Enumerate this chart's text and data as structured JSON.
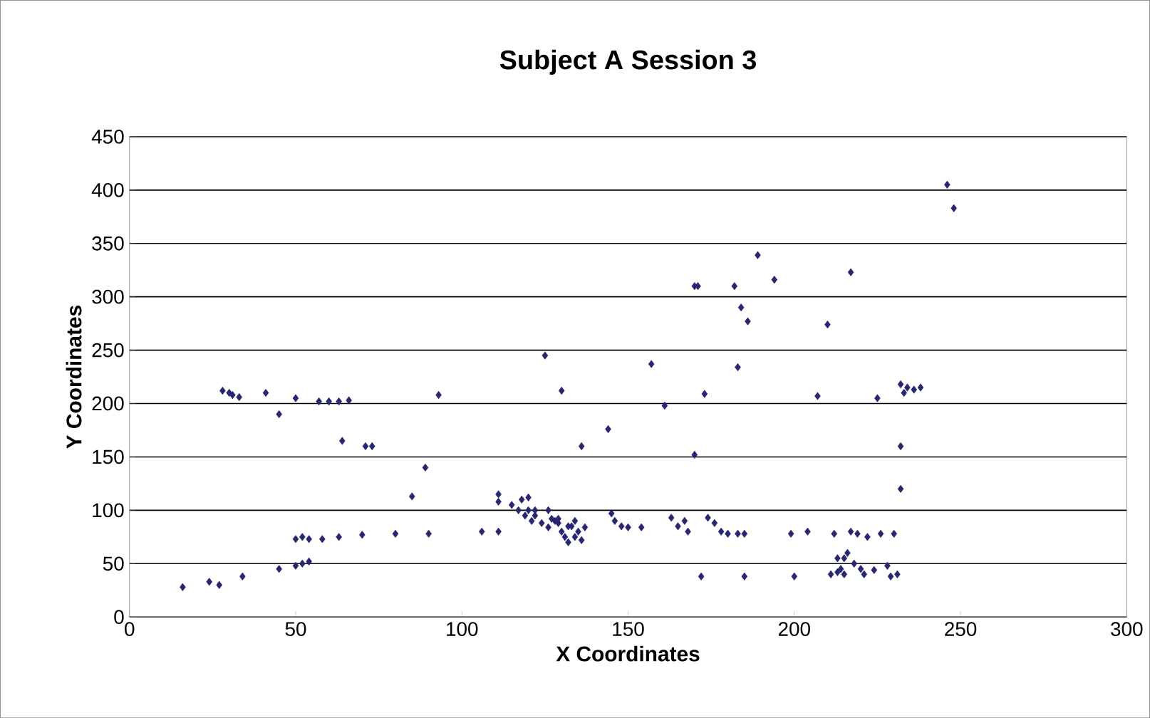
{
  "chart_data": {
    "type": "scatter",
    "title": "Subject A Session 3",
    "xlabel": "X Coordinates",
    "ylabel": "Y Coordinates",
    "xlim": [
      0,
      300
    ],
    "ylim": [
      0,
      450
    ],
    "xticks": [
      0,
      50,
      100,
      150,
      200,
      250,
      300
    ],
    "yticks": [
      0,
      50,
      100,
      150,
      200,
      250,
      300,
      350,
      400,
      450
    ],
    "grid": "y",
    "marker": "diamond",
    "series": [
      {
        "color": "#262673",
        "x": [
          16,
          24,
          27,
          34,
          45,
          50,
          52,
          54,
          50,
          52,
          54,
          58,
          63,
          70,
          80,
          85,
          89,
          90,
          28,
          30,
          31,
          33,
          41,
          45,
          50,
          57,
          60,
          63,
          66,
          64,
          71,
          73,
          93,
          106,
          111,
          111,
          111,
          115,
          117,
          118,
          119,
          120,
          121,
          122,
          124,
          126,
          127,
          128,
          129,
          130,
          131,
          132,
          133,
          134,
          135,
          136,
          137,
          125,
          130,
          136,
          144,
          145,
          146,
          148,
          150,
          154,
          157,
          161,
          163,
          165,
          167,
          168,
          170,
          170,
          171,
          172,
          173,
          174,
          176,
          178,
          180,
          183,
          185,
          182,
          183,
          184,
          185,
          186,
          189,
          194,
          199,
          200,
          204,
          207,
          210,
          211,
          212,
          213,
          214,
          215,
          217,
          218,
          219,
          220,
          221,
          217,
          225,
          226,
          228,
          229,
          230,
          231,
          232,
          232,
          233,
          234,
          236,
          238,
          232,
          246,
          248,
          120,
          122,
          132,
          134,
          129,
          126,
          213,
          216,
          222,
          224,
          215
        ],
        "values": [
          28,
          33,
          30,
          38,
          45,
          48,
          50,
          52,
          73,
          75,
          73,
          73,
          75,
          77,
          78,
          113,
          140,
          78,
          212,
          210,
          208,
          206,
          210,
          190,
          205,
          202,
          202,
          202,
          203,
          165,
          160,
          160,
          208,
          80,
          80,
          115,
          108,
          105,
          100,
          110,
          95,
          112,
          90,
          100,
          88,
          84,
          92,
          90,
          88,
          80,
          75,
          70,
          85,
          75,
          80,
          72,
          84,
          245,
          212,
          160,
          176,
          97,
          90,
          85,
          84,
          84,
          237,
          198,
          93,
          85,
          90,
          80,
          152,
          310,
          310,
          38,
          209,
          93,
          88,
          80,
          78,
          78,
          78,
          310,
          234,
          290,
          38,
          277,
          339,
          316,
          78,
          38,
          80,
          207,
          274,
          40,
          78,
          42,
          45,
          55,
          80,
          50,
          78,
          45,
          40,
          323,
          205,
          78,
          48,
          38,
          78,
          40,
          120,
          160,
          210,
          215,
          213,
          215,
          218,
          405,
          383,
          100,
          95,
          85,
          90,
          92,
          100,
          55,
          60,
          75,
          44,
          40
        ]
      }
    ]
  }
}
